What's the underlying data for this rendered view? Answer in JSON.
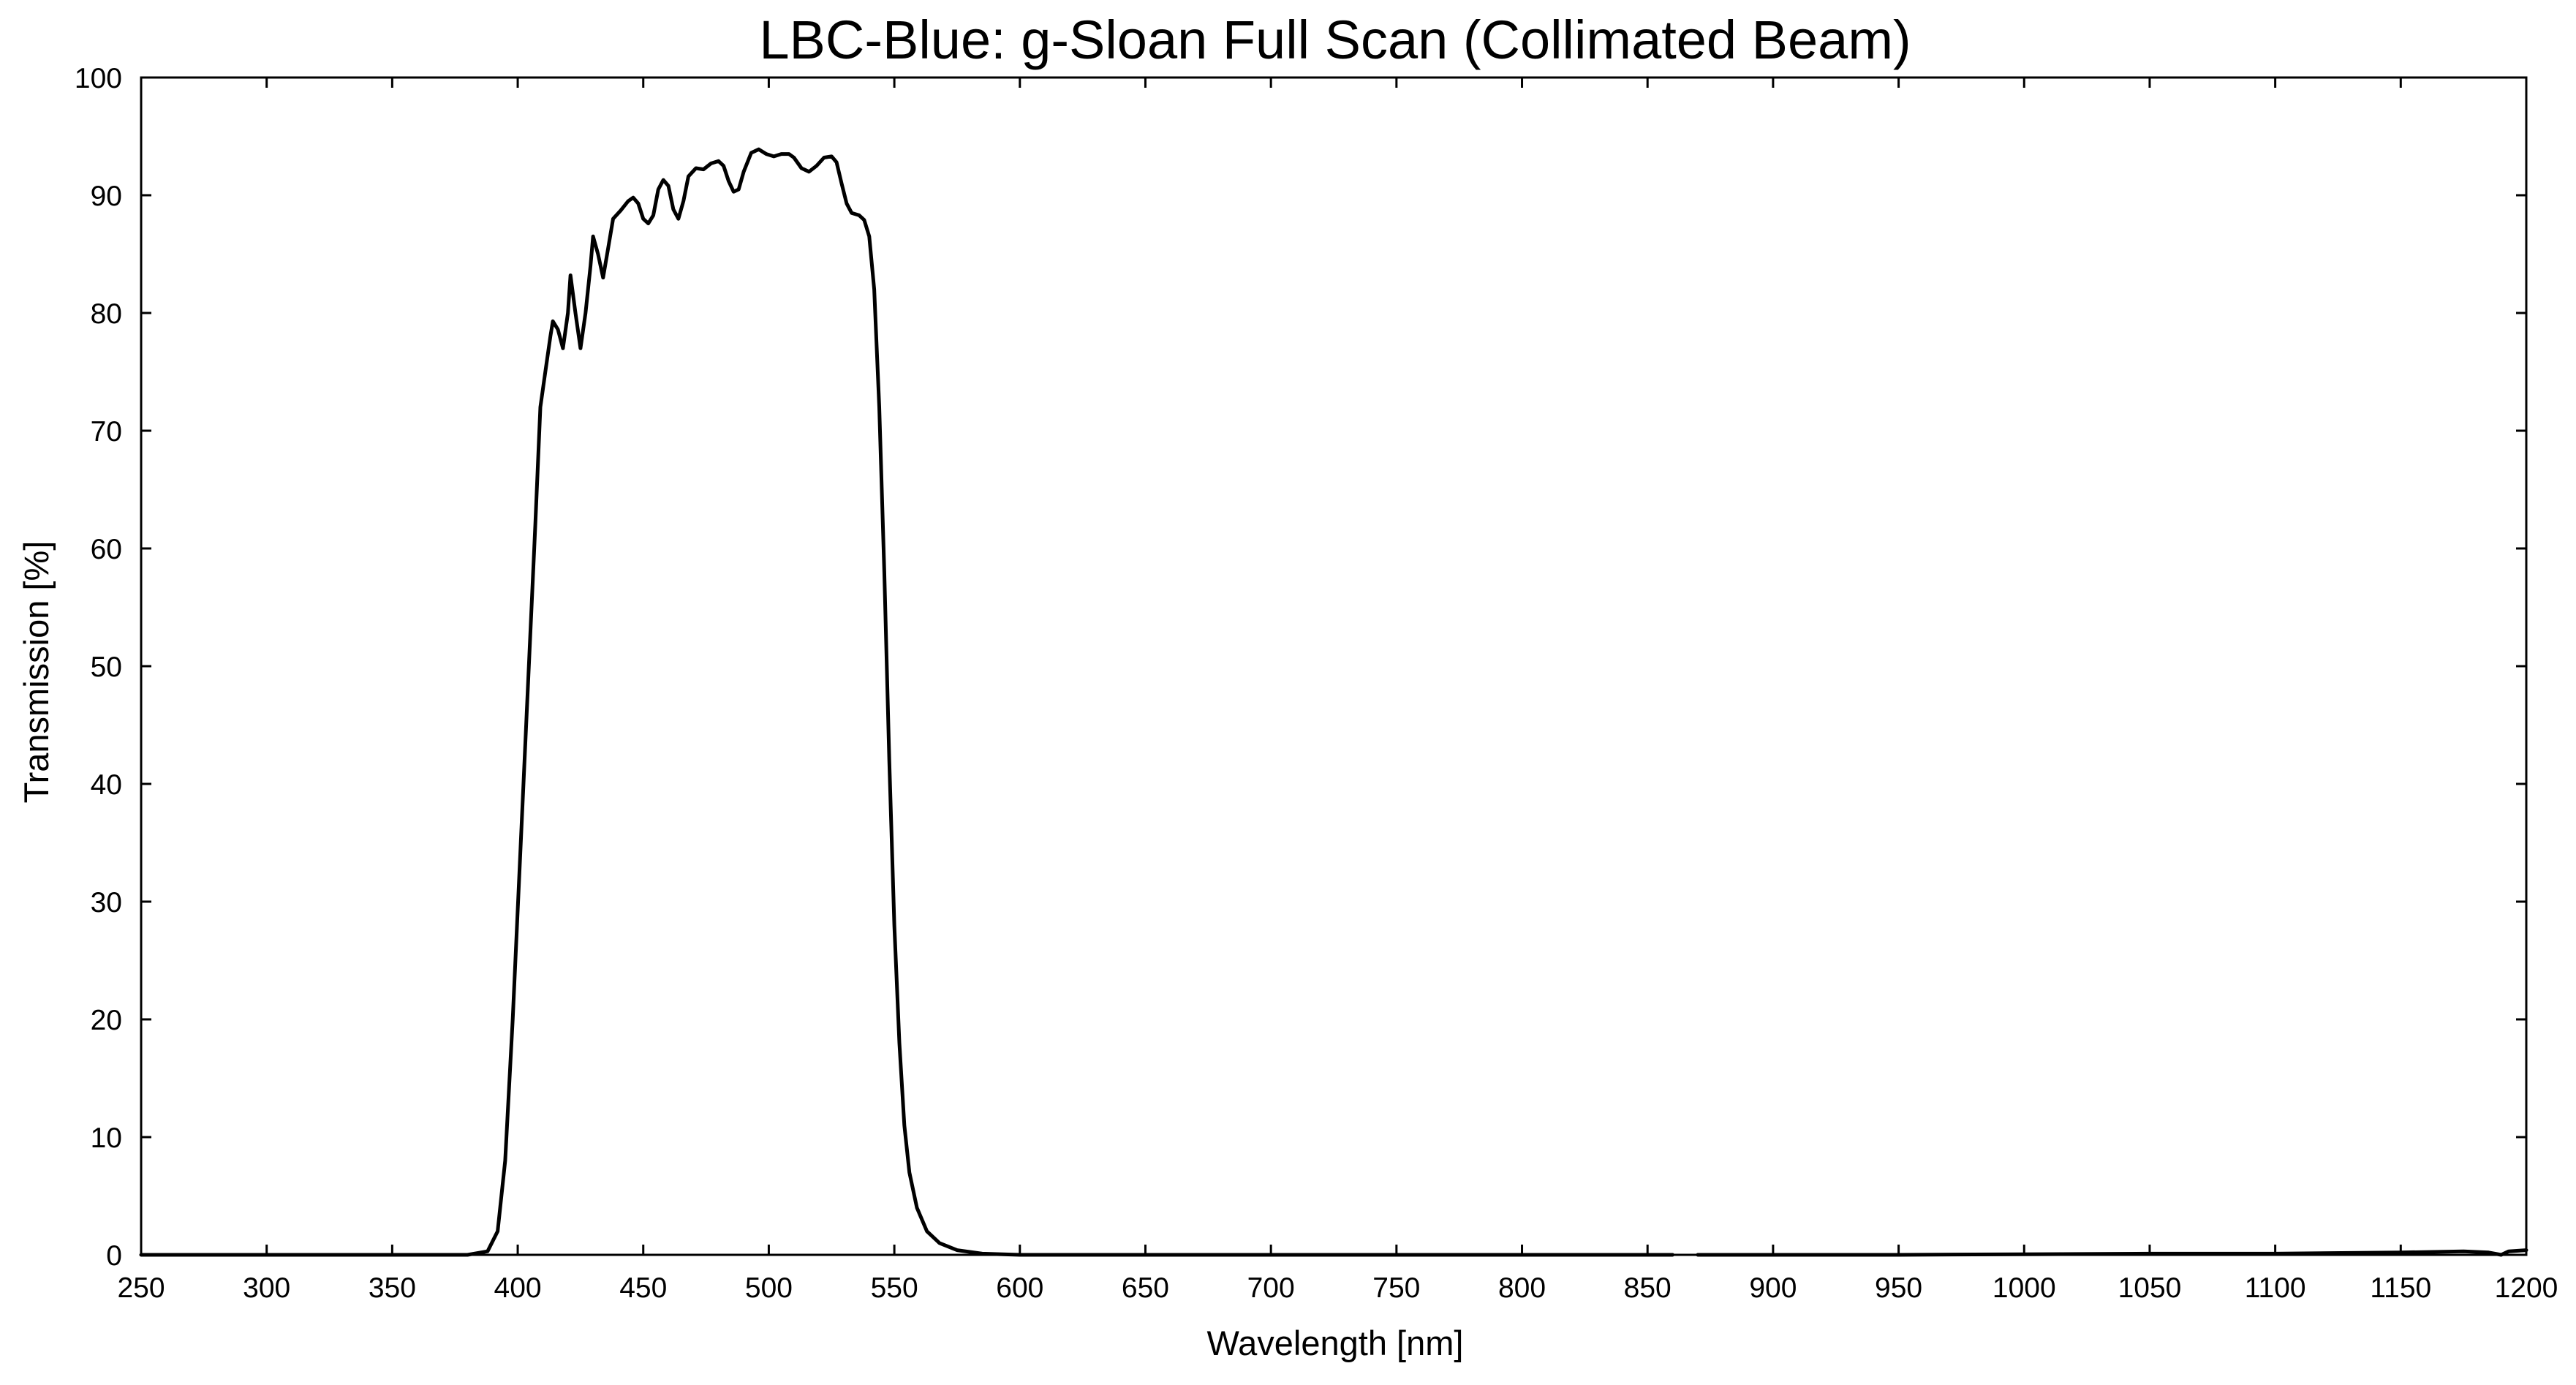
{
  "chart_data": {
    "type": "line",
    "title": "LBC-Blue: g-Sloan Full Scan (Collimated Beam)",
    "xlabel": "Wavelength [nm]",
    "ylabel": "Transmission [%]",
    "xlim": [
      250,
      1200
    ],
    "ylim": [
      0,
      100
    ],
    "x_ticks": [
      "250",
      "300",
      "350",
      "400",
      "450",
      "500",
      "550",
      "600",
      "650",
      "700",
      "750",
      "800",
      "850",
      "900",
      "950",
      "1000",
      "1050",
      "1100",
      "1150",
      "1200"
    ],
    "y_ticks": [
      "0",
      "10",
      "20",
      "30",
      "40",
      "50",
      "60",
      "70",
      "80",
      "90",
      "100"
    ],
    "grid": false,
    "line_color": "#000000",
    "series": [
      {
        "segments": [
          [
            [
              250,
              0
            ],
            [
              380,
              0
            ],
            [
              388,
              0.3
            ],
            [
              392,
              2
            ],
            [
              395,
              8
            ],
            [
              398,
              20
            ],
            [
              401,
              34
            ],
            [
              404,
              48
            ],
            [
              407,
              62
            ],
            [
              409,
              72
            ],
            [
              411,
              75
            ],
            [
              413,
              78
            ],
            [
              414,
              79.3
            ],
            [
              416,
              78.6
            ],
            [
              418,
              77
            ],
            [
              420,
              80
            ],
            [
              421,
              83.2
            ],
            [
              423,
              80
            ],
            [
              425,
              77
            ],
            [
              427,
              80
            ],
            [
              429,
              84
            ],
            [
              430,
              86.5
            ],
            [
              432,
              85
            ],
            [
              434,
              83
            ],
            [
              436,
              85.5
            ],
            [
              438,
              88
            ],
            [
              441,
              88.7
            ],
            [
              444,
              89.5
            ],
            [
              446,
              89.8
            ],
            [
              448,
              89.3
            ],
            [
              450,
              88
            ],
            [
              452,
              87.6
            ],
            [
              454,
              88.3
            ],
            [
              456,
              90.5
            ],
            [
              458,
              91.3
            ],
            [
              460,
              90.8
            ],
            [
              462,
              88.8
            ],
            [
              464,
              88
            ],
            [
              466,
              89.5
            ],
            [
              468,
              91.6
            ],
            [
              471,
              92.3
            ],
            [
              474,
              92.2
            ],
            [
              477,
              92.7
            ],
            [
              480,
              92.9
            ],
            [
              482,
              92.5
            ],
            [
              484,
              91.2
            ],
            [
              486,
              90.3
            ],
            [
              488,
              90.5
            ],
            [
              490,
              92
            ],
            [
              493,
              93.6
            ],
            [
              496,
              93.9
            ],
            [
              499,
              93.5
            ],
            [
              502,
              93.3
            ],
            [
              505,
              93.5
            ],
            [
              508,
              93.5
            ],
            [
              510,
              93.2
            ],
            [
              513,
              92.3
            ],
            [
              516,
              92
            ],
            [
              519,
              92.5
            ],
            [
              522,
              93.2
            ],
            [
              525,
              93.3
            ],
            [
              527,
              92.8
            ],
            [
              529,
              91
            ],
            [
              531,
              89.3
            ],
            [
              533,
              88.5
            ],
            [
              536,
              88.3
            ],
            [
              538,
              87.9
            ],
            [
              540,
              86.5
            ],
            [
              542,
              82
            ],
            [
              544,
              72
            ],
            [
              546,
              58
            ],
            [
              548,
              42
            ],
            [
              550,
              28
            ],
            [
              552,
              18
            ],
            [
              554,
              11
            ],
            [
              556,
              7
            ],
            [
              559,
              4
            ],
            [
              563,
              2
            ],
            [
              568,
              1
            ],
            [
              575,
              0.4
            ],
            [
              585,
              0.1
            ],
            [
              600,
              0
            ],
            [
              860,
              0
            ]
          ],
          [
            [
              870,
              0
            ],
            [
              950,
              0
            ],
            [
              1050,
              0.1
            ],
            [
              1100,
              0.1
            ],
            [
              1150,
              0.2
            ],
            [
              1175,
              0.3
            ],
            [
              1185,
              0.2
            ],
            [
              1190,
              0
            ],
            [
              1193,
              0.3
            ],
            [
              1200,
              0.4
            ]
          ]
        ]
      }
    ]
  }
}
